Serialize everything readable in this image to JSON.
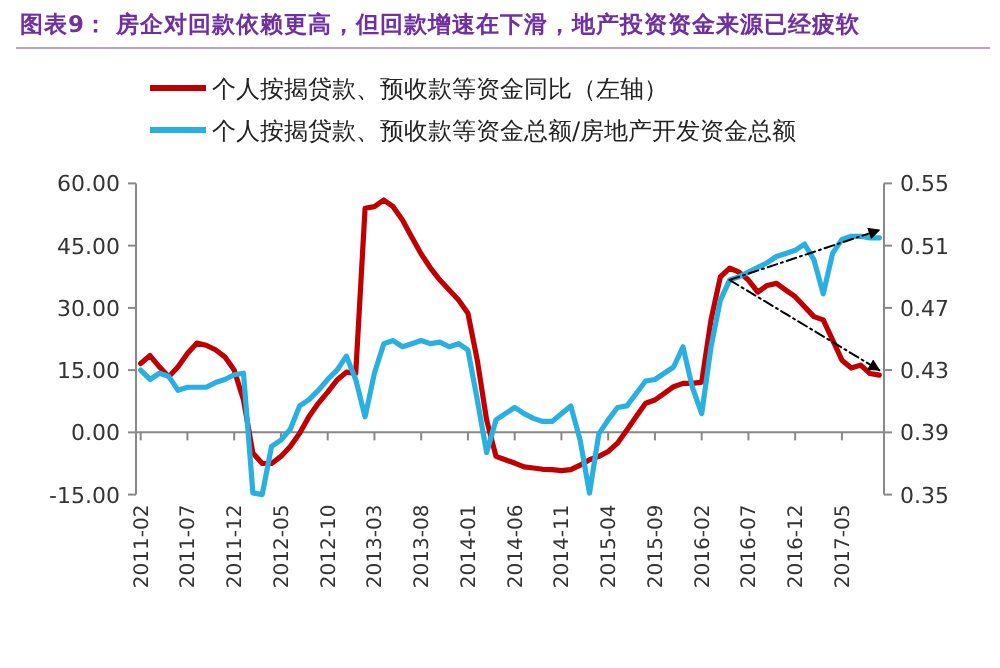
{
  "chart_data": {
    "type": "line",
    "title": "图表9：  房企对回款依赖更高，但回款增速在下滑，地产投资资金来源已经疲软",
    "categories": [
      "2011-02",
      null,
      null,
      null,
      null,
      "2011-07",
      null,
      null,
      null,
      null,
      "2011-12",
      null,
      null,
      null,
      null,
      "2012-05",
      null,
      null,
      null,
      null,
      "2012-10",
      null,
      null,
      null,
      null,
      "2013-03",
      null,
      null,
      null,
      null,
      "2013-08",
      null,
      null,
      null,
      null,
      "2014-01",
      null,
      null,
      null,
      null,
      "2014-06",
      null,
      null,
      null,
      null,
      "2014-11",
      null,
      null,
      null,
      null,
      "2015-04",
      null,
      null,
      null,
      null,
      "2015-09",
      null,
      null,
      null,
      null,
      "2016-02",
      null,
      null,
      null,
      null,
      "2016-07",
      null,
      null,
      null,
      null,
      "2016-12",
      null,
      null,
      null,
      null,
      "2017-05",
      null,
      null,
      null,
      null
    ],
    "series": [
      {
        "name": "个人按揭贷款、预收款等资金同比（左轴）",
        "color": "#c00000",
        "values": [
          16.6,
          18.5,
          15.8,
          13.4,
          15.8,
          19,
          21.5,
          21,
          19.9,
          18.2,
          15,
          7.8,
          -5,
          -7.5,
          -7.5,
          -5.8,
          -3.4,
          -0.2,
          3.8,
          7,
          9.7,
          12.6,
          14.5,
          14.2,
          54,
          54.4,
          56,
          54.4,
          51.2,
          47,
          43,
          39.6,
          36.7,
          34.3,
          31.9,
          28.7,
          17.4,
          3,
          -5.8,
          -6.6,
          -7.4,
          -8.3,
          -8.6,
          -8.9,
          -9,
          -9.2,
          -9,
          -7.9,
          -6.6,
          -5.8,
          -4.6,
          -2.6,
          0.6,
          3.8,
          7,
          7.8,
          9.4,
          11,
          11.8,
          11.8,
          12.1,
          27.1,
          37.5,
          39.6,
          38.6,
          36.7,
          33.8,
          35.4,
          35.9,
          34.3,
          32.7,
          30.3,
          27.9,
          27.1,
          22.3,
          17.4,
          15.5,
          16.2,
          14.2,
          13.8
        ]
      },
      {
        "name": "个人按揭贷款、预收款等资金总额/房地产开发资金总额",
        "color": "#2ab0e0",
        "axis": "y2",
        "values": [
          0.43,
          0.424,
          0.428,
          0.426,
          0.417,
          0.419,
          0.419,
          0.419,
          0.422,
          0.424,
          0.427,
          0.428,
          0.351,
          0.35,
          0.381,
          0.385,
          0.392,
          0.407,
          0.411,
          0.417,
          0.424,
          0.43,
          0.439,
          0.424,
          0.4,
          0.428,
          0.447,
          0.449,
          0.445,
          0.447,
          0.449,
          0.447,
          0.448,
          0.445,
          0.447,
          0.443,
          0.411,
          0.377,
          0.398,
          0.402,
          0.406,
          0.402,
          0.399,
          0.397,
          0.397,
          0.402,
          0.407,
          0.385,
          0.351,
          0.389,
          0.398,
          0.406,
          0.407,
          0.415,
          0.423,
          0.424,
          0.428,
          0.432,
          0.445,
          0.419,
          0.402,
          0.445,
          0.475,
          0.488,
          0.49,
          0.493,
          0.496,
          0.499,
          0.503,
          0.505,
          0.507,
          0.511,
          0.501,
          0.479,
          0.505,
          0.514,
          0.516,
          0.516,
          0.515,
          0.515
        ]
      },
      {
        "color": "#000000",
        "axis": "y2",
        "line_style": "dashed",
        "values": [
          null,
          null,
          null,
          null,
          null,
          null,
          null,
          null,
          null,
          null,
          null,
          null,
          null,
          null,
          null,
          null,
          null,
          null,
          null,
          null,
          null,
          null,
          null,
          null,
          null,
          null,
          null,
          null,
          null,
          null,
          null,
          null,
          null,
          null,
          null,
          null,
          null,
          null,
          null,
          null,
          null,
          null,
          null,
          null,
          null,
          null,
          null,
          null,
          null,
          null,
          null,
          null,
          null,
          null,
          null,
          null,
          null,
          null,
          null,
          null,
          null,
          null,
          null,
          0.488,
          null,
          null,
          null,
          null,
          null,
          null,
          null,
          null,
          null,
          null,
          null,
          null,
          null,
          null,
          null,
          0.52
        ]
      },
      {
        "color": "#000000",
        "line_style": "dashed",
        "values": [
          null,
          null,
          null,
          null,
          null,
          null,
          null,
          null,
          null,
          null,
          null,
          null,
          null,
          null,
          null,
          null,
          null,
          null,
          null,
          null,
          null,
          null,
          null,
          null,
          null,
          null,
          null,
          null,
          null,
          null,
          null,
          null,
          null,
          null,
          null,
          null,
          null,
          null,
          null,
          null,
          null,
          null,
          null,
          null,
          null,
          null,
          null,
          null,
          null,
          null,
          null,
          null,
          null,
          null,
          null,
          null,
          null,
          null,
          null,
          null,
          null,
          null,
          null,
          36.7,
          null,
          null,
          null,
          null,
          null,
          null,
          null,
          null,
          null,
          null,
          null,
          null,
          null,
          null,
          null,
          15
        ]
      }
    ],
    "ylim": [
      -15,
      60
    ],
    "yticks": [
      {
        "value": -15,
        "label": "-15.00"
      },
      {
        "value": 0,
        "label": "0.00"
      },
      {
        "value": 15,
        "label": "15.00"
      },
      {
        "value": 30,
        "label": "30.00"
      },
      {
        "value": 45,
        "label": "45.00"
      },
      {
        "value": 60,
        "label": "60.00"
      }
    ],
    "y2lim": [
      0.35,
      0.55
    ],
    "y2ticks": [
      0.35,
      0.39,
      0.43,
      0.47,
      0.51,
      0.55
    ],
    "legend": "top"
  }
}
